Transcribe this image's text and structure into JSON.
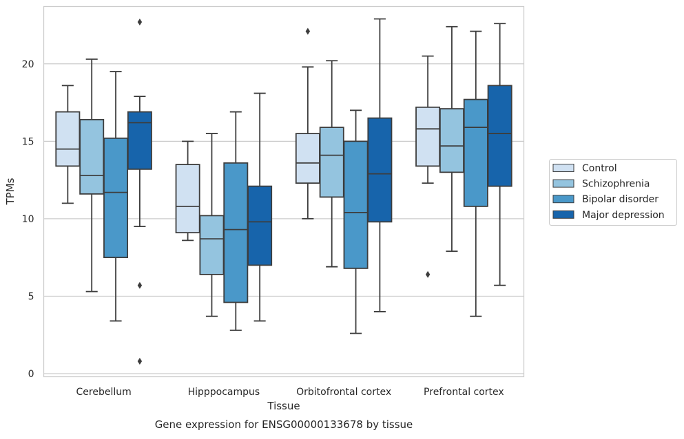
{
  "chart_data": {
    "type": "box",
    "xlabel": "Tissue",
    "ylabel": "TPMs",
    "caption": "Gene expression for ENSG00000133678 by tissue",
    "ylim": [
      -0.2,
      23.7
    ],
    "yticks": [
      0,
      5,
      10,
      15,
      20
    ],
    "grid": "horizontal",
    "legend_position": "right",
    "categories": [
      "Cerebellum",
      "Hipppocampus",
      "Orbitofrontal cortex",
      "Prefrontal cortex"
    ],
    "series": [
      {
        "name": "Control",
        "color": "#d0e1f2",
        "boxes": [
          {
            "whislo": 11.0,
            "q1": 13.4,
            "med": 14.5,
            "q3": 16.9,
            "whishi": 18.6,
            "fliers": []
          },
          {
            "whislo": 8.6,
            "q1": 9.1,
            "med": 10.8,
            "q3": 13.5,
            "whishi": 15.0,
            "fliers": []
          },
          {
            "whislo": 10.0,
            "q1": 12.3,
            "med": 13.6,
            "q3": 15.5,
            "whishi": 19.8,
            "fliers": [
              22.1
            ]
          },
          {
            "whislo": 12.3,
            "q1": 13.4,
            "med": 15.8,
            "q3": 17.2,
            "whishi": 20.5,
            "fliers": [
              6.4
            ]
          }
        ]
      },
      {
        "name": "Schizophrenia",
        "color": "#94c4df",
        "boxes": [
          {
            "whislo": 5.3,
            "q1": 11.6,
            "med": 12.8,
            "q3": 16.4,
            "whishi": 20.3,
            "fliers": []
          },
          {
            "whislo": 3.7,
            "q1": 6.4,
            "med": 8.7,
            "q3": 10.2,
            "whishi": 15.5,
            "fliers": []
          },
          {
            "whislo": 6.9,
            "q1": 11.4,
            "med": 14.1,
            "q3": 15.9,
            "whishi": 20.2,
            "fliers": []
          },
          {
            "whislo": 7.9,
            "q1": 13.0,
            "med": 14.7,
            "q3": 17.1,
            "whishi": 22.4,
            "fliers": []
          }
        ]
      },
      {
        "name": "Bipolar disorder",
        "color": "#4a98c9",
        "boxes": [
          {
            "whislo": 3.4,
            "q1": 7.5,
            "med": 11.7,
            "q3": 15.2,
            "whishi": 19.5,
            "fliers": []
          },
          {
            "whislo": 2.8,
            "q1": 4.6,
            "med": 9.3,
            "q3": 13.6,
            "whishi": 16.9,
            "fliers": []
          },
          {
            "whislo": 2.6,
            "q1": 6.8,
            "med": 10.4,
            "q3": 15.0,
            "whishi": 17.0,
            "fliers": []
          },
          {
            "whislo": 3.7,
            "q1": 10.8,
            "med": 15.9,
            "q3": 17.7,
            "whishi": 22.1,
            "fliers": []
          }
        ]
      },
      {
        "name": "Major depression",
        "color": "#1764ab",
        "boxes": [
          {
            "whislo": 9.5,
            "q1": 13.2,
            "med": 16.2,
            "q3": 16.9,
            "whishi": 17.9,
            "fliers": [
              22.7,
              5.7,
              0.8
            ]
          },
          {
            "whislo": 3.4,
            "q1": 7.0,
            "med": 9.8,
            "q3": 12.1,
            "whishi": 18.1,
            "fliers": []
          },
          {
            "whislo": 4.0,
            "q1": 9.8,
            "med": 12.9,
            "q3": 16.5,
            "whishi": 22.9,
            "fliers": []
          },
          {
            "whislo": 5.7,
            "q1": 12.1,
            "med": 15.5,
            "q3": 18.6,
            "whishi": 22.6,
            "fliers": []
          }
        ]
      }
    ]
  }
}
